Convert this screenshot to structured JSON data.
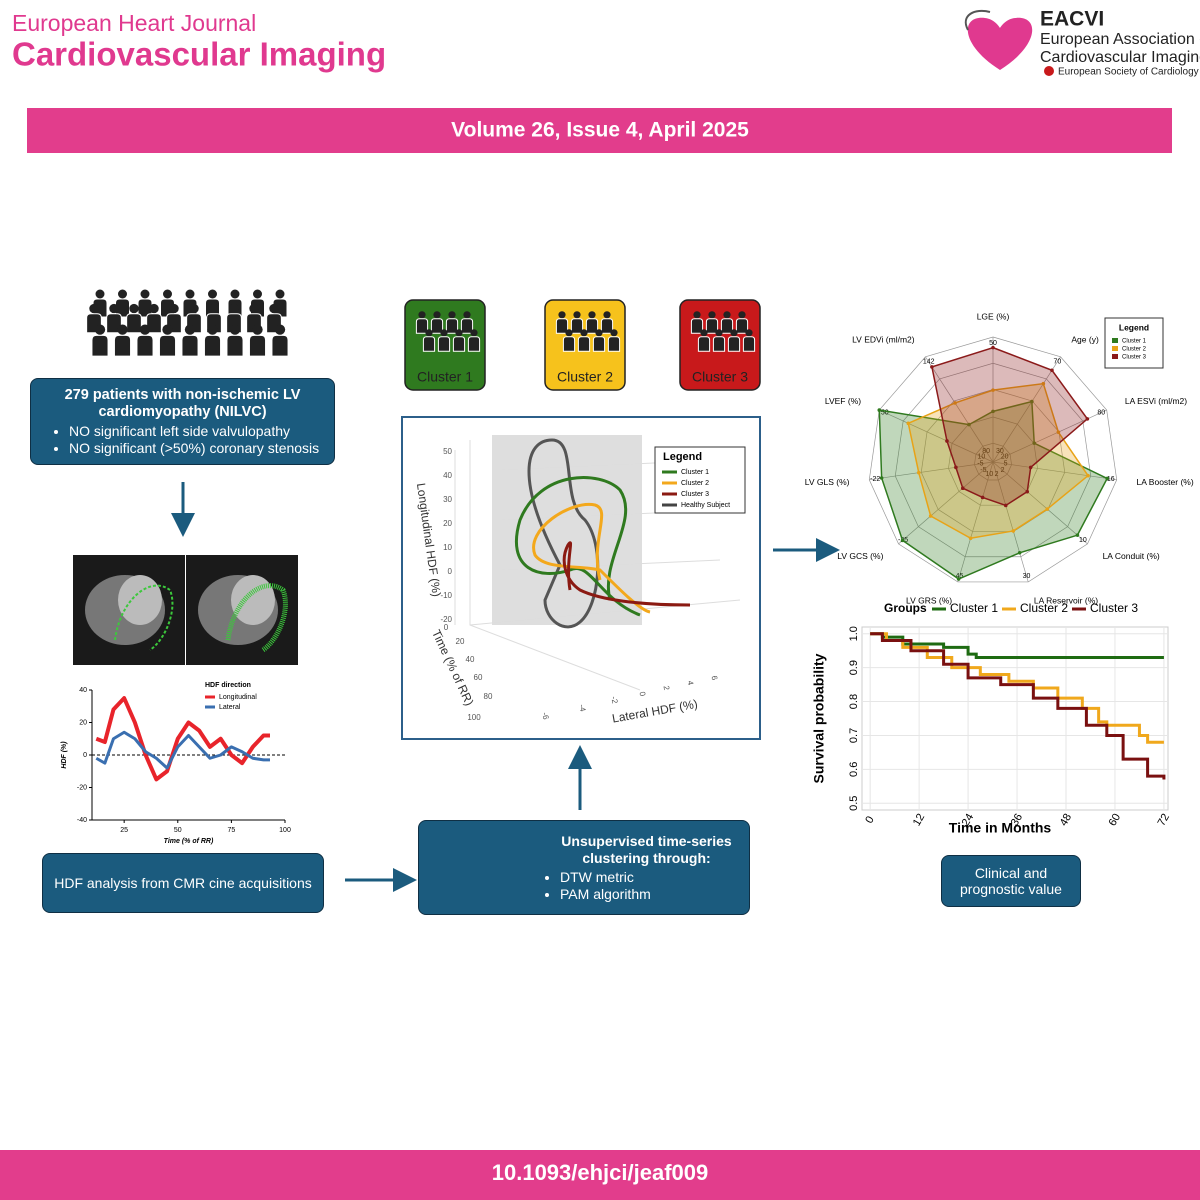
{
  "header": {
    "journal_small": "European Heart Journal",
    "journal_big": "Cardiovascular Imaging",
    "org_abbr": "EACVI",
    "org_line_1": "European Association of",
    "org_line_2": "Cardiovascular Imaging",
    "society": "European Society of Cardiology"
  },
  "banner": "Volume 26, Issue 4, April 2025",
  "doi": "10.1093/ehjci/jeaf009",
  "patients": {
    "title": "279 patients with non-ischemic LV cardiomyopathy (NILVC)",
    "bullets": [
      "NO significant left side valvulopathy",
      "NO significant (>50%) coronary stenosis"
    ]
  },
  "clusters": [
    {
      "name": "Cluster 1",
      "color": "#2f7a1f"
    },
    {
      "name": "Cluster 2",
      "color": "#f6c21c"
    },
    {
      "name": "Cluster 3",
      "color": "#c8191b"
    }
  ],
  "hdf_box": "HDF analysis from CMR cine acquisitions",
  "clustering": {
    "title": "Unsupervised time-series clustering through:",
    "bullets": [
      "DTW metric",
      "PAM algorithm"
    ]
  },
  "outcome": "Clinical and prognostic value",
  "hdf_chart": {
    "type": "line",
    "legend_title": "HDF direction",
    "x_label": "Time (% of RR)",
    "y_label": "HDF (%)",
    "x": [
      12,
      16,
      20,
      25,
      30,
      35,
      40,
      45,
      50,
      55,
      60,
      65,
      70,
      75,
      80,
      85,
      90,
      93
    ],
    "series": [
      {
        "name": "Longitudinal",
        "color": "#e8242b",
        "values": [
          10,
          8,
          28,
          35,
          20,
          0,
          -15,
          -10,
          10,
          20,
          15,
          5,
          10,
          0,
          -5,
          5,
          12,
          12
        ]
      },
      {
        "name": "Lateral",
        "color": "#3a6fb0",
        "values": [
          -2,
          -5,
          10,
          14,
          10,
          2,
          -2,
          -8,
          5,
          12,
          5,
          -2,
          0,
          5,
          2,
          -2,
          -3,
          -3
        ]
      }
    ],
    "xlim": [
      10,
      100
    ],
    "xticks": [
      25,
      50,
      75,
      100
    ],
    "ylim": [
      -40,
      40
    ],
    "yticks": [
      -40,
      -20,
      0,
      20,
      40
    ]
  },
  "trajectory_chart": {
    "legend_title": "Legend",
    "series": [
      {
        "name": "Cluster 1",
        "color": "#2f7a1f"
      },
      {
        "name": "Cluster 2",
        "color": "#f3a81c"
      },
      {
        "name": "Cluster 3",
        "color": "#8b1a12"
      },
      {
        "name": "Healthy Subject",
        "color": "#444444"
      }
    ],
    "y_label": "Longitudinal HDF (%)",
    "t_label": "Time (% of RR)",
    "x_label": "Lateral HDF (%)",
    "yticks": [
      50,
      40,
      30,
      20,
      10,
      0,
      -10,
      -20
    ],
    "tticks": [
      0,
      20,
      40,
      60,
      80,
      100
    ],
    "xticks": [
      -6,
      -4,
      -2,
      0,
      2,
      4,
      6
    ]
  },
  "radar_chart": {
    "type": "radar",
    "legend_title": "Legend",
    "axes": [
      {
        "label": "LGE (%)",
        "lim": [
          0,
          50
        ],
        "ticks": [
          50
        ]
      },
      {
        "label": "Age (y)",
        "lim": [
          30,
          70
        ],
        "ticks": [
          30,
          70
        ]
      },
      {
        "label": "LA ESVi (ml/m2)",
        "lim": [
          20,
          80
        ],
        "ticks": [
          20,
          80
        ]
      },
      {
        "label": "LA Booster (%)",
        "lim": [
          5,
          16
        ],
        "ticks": [
          5,
          16
        ]
      },
      {
        "label": "LA Conduit (%)",
        "lim": [
          2,
          10
        ],
        "ticks": [
          2,
          10
        ]
      },
      {
        "label": "LA Reservoir (%)",
        "lim": [
          2,
          30
        ],
        "ticks": [
          2,
          30
        ]
      },
      {
        "label": "LV GRS (%)",
        "lim": [
          10,
          45
        ],
        "ticks": [
          10,
          45
        ]
      },
      {
        "label": "LV GCS (%)",
        "lim": [
          -5,
          -25
        ],
        "ticks": [
          -5,
          -25
        ]
      },
      {
        "label": "LV GLS (%)",
        "lim": [
          -5,
          -22
        ],
        "ticks": [
          -5,
          -22
        ]
      },
      {
        "label": "LVEF (%)",
        "lim": [
          10,
          50
        ],
        "ticks": [
          10,
          50
        ]
      },
      {
        "label": "LV EDVi (ml/m2)",
        "lim": [
          80,
          142
        ],
        "ticks": [
          80,
          142
        ]
      }
    ],
    "series": [
      {
        "name": "Cluster 1",
        "color": "#2f7a1f",
        "values": [
          15,
          50,
          35,
          15,
          9,
          22,
          44,
          -24,
          -20,
          50,
          95
        ]
      },
      {
        "name": "Cluster 2",
        "color": "#e8a317",
        "values": [
          25,
          58,
          50,
          13,
          6,
          16,
          30,
          -17,
          -14,
          38,
          110
        ]
      },
      {
        "name": "Cluster 3",
        "color": "#8b1a1a",
        "values": [
          45,
          64,
          68,
          7,
          4,
          9,
          16,
          -9,
          -8,
          22,
          135
        ]
      }
    ]
  },
  "survival_chart": {
    "type": "step",
    "legend_title": "Groups",
    "x_label": "Time in Months",
    "y_label": "Survival probability",
    "series": [
      {
        "name": "Cluster 1",
        "color": "#1e6b12",
        "x": [
          0,
          3,
          8,
          18,
          24,
          26,
          72
        ],
        "values": [
          1.0,
          0.99,
          0.97,
          0.96,
          0.94,
          0.93,
          0.93
        ]
      },
      {
        "name": "Cluster 2",
        "color": "#f0a81c",
        "x": [
          0,
          4,
          8,
          14,
          20,
          27,
          34,
          40,
          46,
          52,
          56,
          58,
          66,
          68,
          72
        ],
        "values": [
          1.0,
          0.98,
          0.96,
          0.93,
          0.9,
          0.88,
          0.86,
          0.84,
          0.81,
          0.78,
          0.74,
          0.73,
          0.7,
          0.68,
          0.68
        ]
      },
      {
        "name": "Cluster 3",
        "color": "#7a1010",
        "x": [
          0,
          3,
          10,
          18,
          24,
          32,
          40,
          46,
          53,
          58,
          62,
          68,
          72
        ],
        "values": [
          1.0,
          0.98,
          0.95,
          0.91,
          0.87,
          0.85,
          0.81,
          0.78,
          0.73,
          0.7,
          0.63,
          0.58,
          0.57
        ]
      }
    ],
    "xlim": [
      -2,
      73
    ],
    "xticks": [
      0,
      12,
      24,
      36,
      48,
      60,
      72
    ],
    "ylim": [
      0.48,
      1.02
    ],
    "yticks": [
      0.5,
      0.6,
      0.7,
      0.8,
      0.9,
      {
        "value": 1,
        "label": "1.0"
      }
    ],
    "grid": true
  }
}
